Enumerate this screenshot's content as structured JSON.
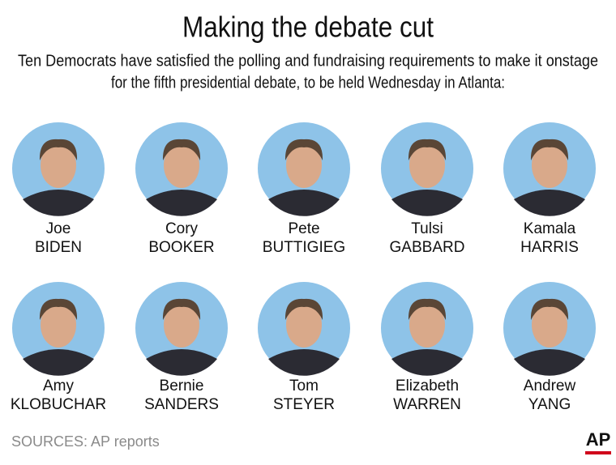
{
  "title": "Making the debate cut",
  "subtitle": [
    "Ten Democrats have satisfied the polling and fundraising requirements to make it onstage",
    "for the fifth presidential debate, to be held Wednesday in Atlanta:"
  ],
  "candidates": [
    {
      "first": "Joe",
      "last": "BIDEN"
    },
    {
      "first": "Cory",
      "last": "BOOKER"
    },
    {
      "first": "Pete",
      "last": "BUTTIGIEG"
    },
    {
      "first": "Tulsi",
      "last": "GABBARD"
    },
    {
      "first": "Kamala",
      "last": "HARRIS"
    },
    {
      "first": "Amy",
      "last": "KLOBUCHAR"
    },
    {
      "first": "Bernie",
      "last": "SANDERS"
    },
    {
      "first": "Tom",
      "last": "STEYER"
    },
    {
      "first": "Elizabeth",
      "last": "WARREN"
    },
    {
      "first": "Andrew",
      "last": "YANG"
    }
  ],
  "source": "SOURCES: AP reports",
  "logo": "AP"
}
